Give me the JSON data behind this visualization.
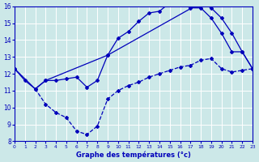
{
  "xlabel": "Graphe des températures (°c)",
  "xlim": [
    0,
    23
  ],
  "ylim": [
    8,
    16
  ],
  "yticks": [
    8,
    9,
    10,
    11,
    12,
    13,
    14,
    15,
    16
  ],
  "xticks": [
    0,
    1,
    2,
    3,
    4,
    5,
    6,
    7,
    8,
    9,
    10,
    11,
    12,
    13,
    14,
    15,
    16,
    17,
    18,
    19,
    20,
    21,
    22,
    23
  ],
  "bg_color": "#cce8e8",
  "line_color": "#0000bb",
  "line1_x": [
    0,
    1,
    2,
    3,
    4,
    5,
    6,
    7,
    8,
    9,
    10,
    11,
    12,
    13,
    14,
    15,
    16,
    17,
    18,
    19,
    20,
    21,
    22,
    23
  ],
  "line1_y": [
    12.3,
    11.6,
    11.1,
    11.6,
    11.6,
    11.7,
    11.8,
    11.2,
    11.6,
    13.1,
    14.1,
    14.5,
    15.1,
    15.6,
    15.7,
    16.2,
    16.2,
    15.9,
    15.9,
    15.3,
    14.4,
    13.3,
    13.3,
    12.3
  ],
  "line2_x": [
    0,
    2,
    3,
    9,
    18,
    19,
    20,
    21,
    22,
    23
  ],
  "line2_y": [
    12.3,
    11.1,
    11.6,
    13.1,
    16.2,
    15.9,
    15.3,
    14.4,
    13.3,
    12.3
  ],
  "line3_x": [
    2,
    3,
    4,
    5,
    6,
    7,
    8,
    9,
    10,
    11,
    12,
    13,
    14,
    15,
    16,
    17,
    18,
    19,
    20,
    21,
    22,
    23
  ],
  "line3_y": [
    11.1,
    10.2,
    9.7,
    9.4,
    8.6,
    8.4,
    8.9,
    10.5,
    11.0,
    11.3,
    11.5,
    11.8,
    12.0,
    12.2,
    12.4,
    12.5,
    12.8,
    12.9,
    12.3,
    12.1,
    12.2,
    12.3
  ]
}
